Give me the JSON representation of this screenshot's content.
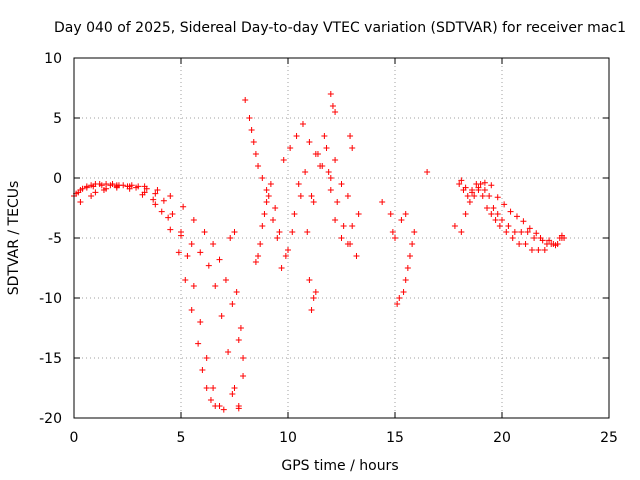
{
  "chart_data": {
    "type": "scatter",
    "title": "Day 040 of 2025, Sidereal Day-to-day VTEC variation (SDTVAR) for receiver mac1",
    "xlabel": "GPS time / hours",
    "ylabel": "SDTVAR / TECUs",
    "xlim": [
      0,
      25
    ],
    "ylim": [
      -20,
      10
    ],
    "xticks": [
      0,
      5,
      10,
      15,
      20,
      25
    ],
    "xtick_labels": [
      "0",
      "5",
      "10",
      "15",
      "20",
      "25"
    ],
    "yticks": [
      10,
      5,
      0,
      -5,
      -10,
      -15,
      -20
    ],
    "ytick_labels": [
      "10",
      "5",
      "0",
      "-5",
      "-10",
      "-15",
      "-20"
    ],
    "grid": true,
    "marker": "+",
    "color": "#ff0000",
    "series": [
      {
        "name": "SDTVAR",
        "x": [
          0.0,
          0.2,
          0.4,
          0.6,
          0.8,
          1.0,
          1.2,
          1.5,
          1.8,
          2.0,
          2.3,
          2.6,
          3.0,
          3.4,
          3.8,
          4.2,
          4.6,
          5.0,
          5.3,
          5.6,
          5.9,
          6.2,
          6.5,
          6.8,
          7.0,
          0.1,
          0.3,
          0.6,
          0.9,
          1.3,
          1.7,
          2.1,
          2.5,
          2.9,
          3.3,
          3.7,
          4.1,
          4.5,
          4.9,
          5.2,
          5.5,
          5.8,
          6.0,
          6.2,
          6.4,
          6.6,
          0.3,
          0.8,
          1.4,
          2.0,
          2.6,
          3.2,
          3.8,
          4.4,
          5.0,
          5.5,
          5.9,
          6.3,
          6.6,
          6.9,
          7.2,
          7.5,
          7.7,
          1.0,
          1.5,
          2.0,
          2.7,
          3.3,
          3.9,
          4.5,
          5.1,
          5.6,
          6.1,
          6.5,
          6.8,
          7.1,
          7.4,
          7.7,
          7.9,
          7.3,
          7.5,
          7.6,
          7.8,
          7.9,
          7.4,
          7.7,
          8.0,
          8.2,
          8.3,
          8.4,
          8.5,
          8.6,
          8.8,
          9.0,
          8.5,
          8.7,
          8.9,
          9.1,
          9.3,
          9.5,
          9.7,
          10.0,
          10.3,
          10.6,
          10.9,
          11.2,
          11.5,
          11.8,
          12.0,
          12.2,
          12.5,
          12.8,
          13.0,
          13.3,
          8.6,
          8.8,
          9.0,
          9.2,
          9.4,
          9.6,
          9.9,
          10.2,
          10.5,
          10.8,
          11.1,
          11.4,
          11.7,
          12.0,
          12.3,
          12.6,
          12.9,
          13.2,
          9.8,
          10.1,
          10.4,
          10.7,
          11.0,
          11.3,
          11.6,
          11.9,
          12.2,
          12.5,
          12.8,
          12.0,
          12.1,
          12.2,
          12.9,
          13.0,
          11.0,
          11.2,
          11.1,
          11.3,
          14.4,
          14.8,
          14.9,
          15.0,
          15.1,
          15.2,
          15.4,
          15.5,
          15.6,
          15.7,
          15.8,
          15.9,
          15.3,
          15.5,
          16.5,
          18.0,
          18.2,
          18.4,
          18.6,
          18.8,
          19.0,
          19.2,
          19.4,
          19.6,
          19.8,
          20.0,
          20.3,
          20.6,
          20.9,
          21.2,
          21.5,
          21.8,
          22.1,
          22.4,
          22.7,
          22.9,
          17.8,
          18.1,
          18.3,
          18.5,
          18.7,
          18.9,
          19.1,
          19.3,
          19.5,
          19.7,
          19.9,
          20.2,
          20.5,
          20.8,
          21.1,
          21.4,
          21.7,
          22.0,
          22.3,
          22.6,
          22.8,
          18.1,
          18.3,
          18.6,
          18.9,
          19.2,
          19.5,
          19.8,
          20.1,
          20.4,
          20.7,
          21.0,
          21.3,
          21.6,
          21.9,
          22.2,
          22.5,
          22.8
        ],
        "y": [
          -1.5,
          -1.2,
          -0.9,
          -0.7,
          -0.6,
          -0.5,
          -0.5,
          -0.5,
          -0.5,
          -0.6,
          -0.6,
          -0.7,
          -0.7,
          -0.9,
          -1.3,
          -1.9,
          -3.0,
          -4.8,
          -6.5,
          -9.0,
          -12.0,
          -15.0,
          -17.5,
          -19.0,
          -19.3,
          -1.3,
          -1.0,
          -0.8,
          -0.7,
          -0.6,
          -0.6,
          -0.6,
          -0.7,
          -0.8,
          -1.2,
          -1.8,
          -2.8,
          -4.3,
          -6.2,
          -8.5,
          -11.0,
          -13.8,
          -16.0,
          -17.5,
          -18.5,
          -19.0,
          -2.0,
          -1.5,
          -1.0,
          -0.8,
          -0.9,
          -1.4,
          -2.2,
          -3.3,
          -4.5,
          -5.5,
          -6.2,
          -7.3,
          -9.0,
          -11.5,
          -14.5,
          -17.5,
          -19.0,
          -1.2,
          -0.9,
          -0.7,
          -0.6,
          -0.7,
          -1.0,
          -1.5,
          -2.4,
          -3.5,
          -4.5,
          -5.5,
          -6.8,
          -8.5,
          -10.5,
          -13.5,
          -16.5,
          -5.0,
          -4.5,
          -9.5,
          -12.5,
          -15.0,
          -18.0,
          -19.2,
          6.5,
          5.0,
          4.0,
          3.0,
          2.0,
          1.0,
          0.0,
          -1.0,
          -7.0,
          -5.5,
          -3.0,
          -1.5,
          -3.5,
          -5.0,
          -7.5,
          -6.0,
          -3.0,
          -1.5,
          -4.5,
          -2.0,
          1.0,
          2.5,
          -1.0,
          -3.5,
          -5.0,
          -5.5,
          -4.0,
          -3.0,
          -6.5,
          -4.0,
          -2.0,
          -0.5,
          -2.5,
          -4.5,
          -6.5,
          -4.5,
          -0.5,
          0.5,
          -1.5,
          2.0,
          3.5,
          0.0,
          -2.0,
          -4.0,
          -5.5,
          -6.5,
          1.5,
          2.5,
          3.5,
          4.5,
          3.0,
          2.0,
          1.0,
          0.5,
          1.5,
          -0.5,
          -1.5,
          7.0,
          6.0,
          5.5,
          3.5,
          2.5,
          -8.5,
          -10.0,
          -11.0,
          -9.5,
          -2.0,
          -3.0,
          -4.5,
          -5.0,
          -10.5,
          -10.0,
          -9.5,
          -8.5,
          -7.5,
          -6.5,
          -5.5,
          -4.5,
          -3.5,
          -3.0,
          0.5,
          -0.5,
          -1.0,
          -1.5,
          -1.0,
          -0.5,
          -0.5,
          -1.0,
          -1.5,
          -2.5,
          -3.0,
          -3.5,
          -4.0,
          -4.5,
          -4.5,
          -4.5,
          -5.0,
          -5.0,
          -5.5,
          -5.5,
          -5.0,
          -5.0,
          -4.0,
          -4.5,
          -3.0,
          -2.0,
          -1.5,
          -1.0,
          -1.5,
          -2.5,
          -3.0,
          -3.5,
          -4.0,
          -4.5,
          -5.0,
          -5.5,
          -5.5,
          -6.0,
          -6.0,
          -6.0,
          -5.5,
          -5.5,
          -5.0,
          -0.2,
          -0.8,
          -1.2,
          -0.8,
          -0.4,
          -0.6,
          -1.6,
          -2.2,
          -2.8,
          -3.2,
          -3.6,
          -4.2,
          -4.6,
          -5.2,
          -5.2,
          -5.6,
          -4.8
        ]
      }
    ]
  }
}
